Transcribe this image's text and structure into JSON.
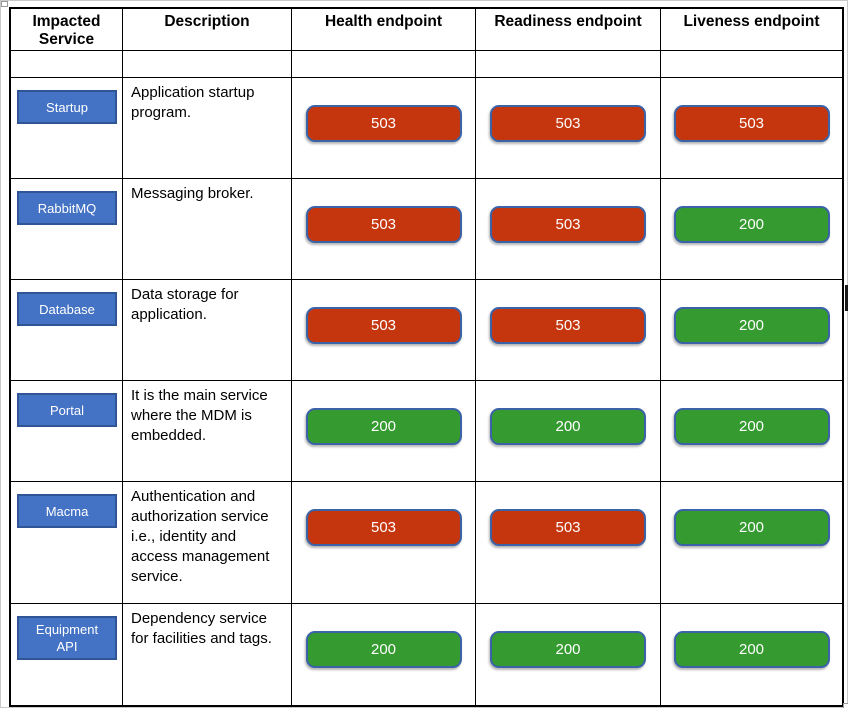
{
  "table": {
    "columns": [
      {
        "label": "Impacted Service"
      },
      {
        "label": "Description"
      },
      {
        "label": "Health endpoint"
      },
      {
        "label": "Readiness endpoint"
      },
      {
        "label": "Liveness endpoint"
      }
    ],
    "rows": [
      {
        "service": "Startup",
        "description": "Application startup program.",
        "health": "503",
        "readiness": "503",
        "liveness": "503"
      },
      {
        "service": "RabbitMQ",
        "description": "Messaging broker.",
        "health": "503",
        "readiness": "503",
        "liveness": "200"
      },
      {
        "service": "Database",
        "description": "Data storage for application.",
        "health": "503",
        "readiness": "503",
        "liveness": "200"
      },
      {
        "service": "Portal",
        "description": "It is the main service where the MDM is embedded.",
        "health": "200",
        "readiness": "200",
        "liveness": "200"
      },
      {
        "service": "Macma",
        "description": "Authentication and authorization service i.e., identity and access management service.",
        "health": "503",
        "readiness": "503",
        "liveness": "200"
      },
      {
        "service": "Equipment API",
        "description": "Dependency service for facilities and tags.",
        "health": "200",
        "readiness": "200",
        "liveness": "200"
      }
    ]
  },
  "status_codes": {
    "error": "503",
    "ok": "200"
  },
  "colors": {
    "status_ok": "#359A2F",
    "status_error": "#C5350E",
    "button_border": "#3A63A8",
    "service_fill": "#4472C4",
    "service_border": "#2F5597"
  }
}
